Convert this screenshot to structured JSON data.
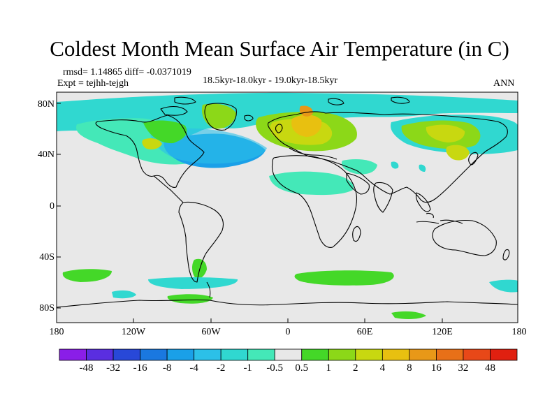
{
  "title": "Coldest Month Mean Surface Air Temperature (in C)",
  "stats": {
    "rmsd": "rmsd= 1.14865 diff= -0.0371019",
    "expt": "Expt = tejhh-tejgh",
    "period": "18.5kyr-18.0kyr - 19.0kyr-18.5kyr",
    "season": "ANN"
  },
  "y_ticks": [
    "80N",
    "40N",
    "0",
    "40S",
    "80S"
  ],
  "x_ticks": [
    "180",
    "120W",
    "60W",
    "0",
    "60E",
    "120E",
    "180"
  ],
  "colorbar": {
    "colors": [
      "#8a1ee8",
      "#5a2ee0",
      "#2848d8",
      "#1a78e0",
      "#1aa0e8",
      "#2cc0e8",
      "#30d8d0",
      "#44e8b8",
      "#e8e8e8",
      "#44d828",
      "#8cd818",
      "#c8d810",
      "#e8c010",
      "#e89818",
      "#e87018",
      "#e84818",
      "#e02010"
    ],
    "labels": [
      "-48",
      "-32",
      "-16",
      "-8",
      "-4",
      "-2",
      "-1",
      "-0.5",
      "0.5",
      "1",
      "2",
      "4",
      "8",
      "16",
      "32",
      "48"
    ]
  }
}
